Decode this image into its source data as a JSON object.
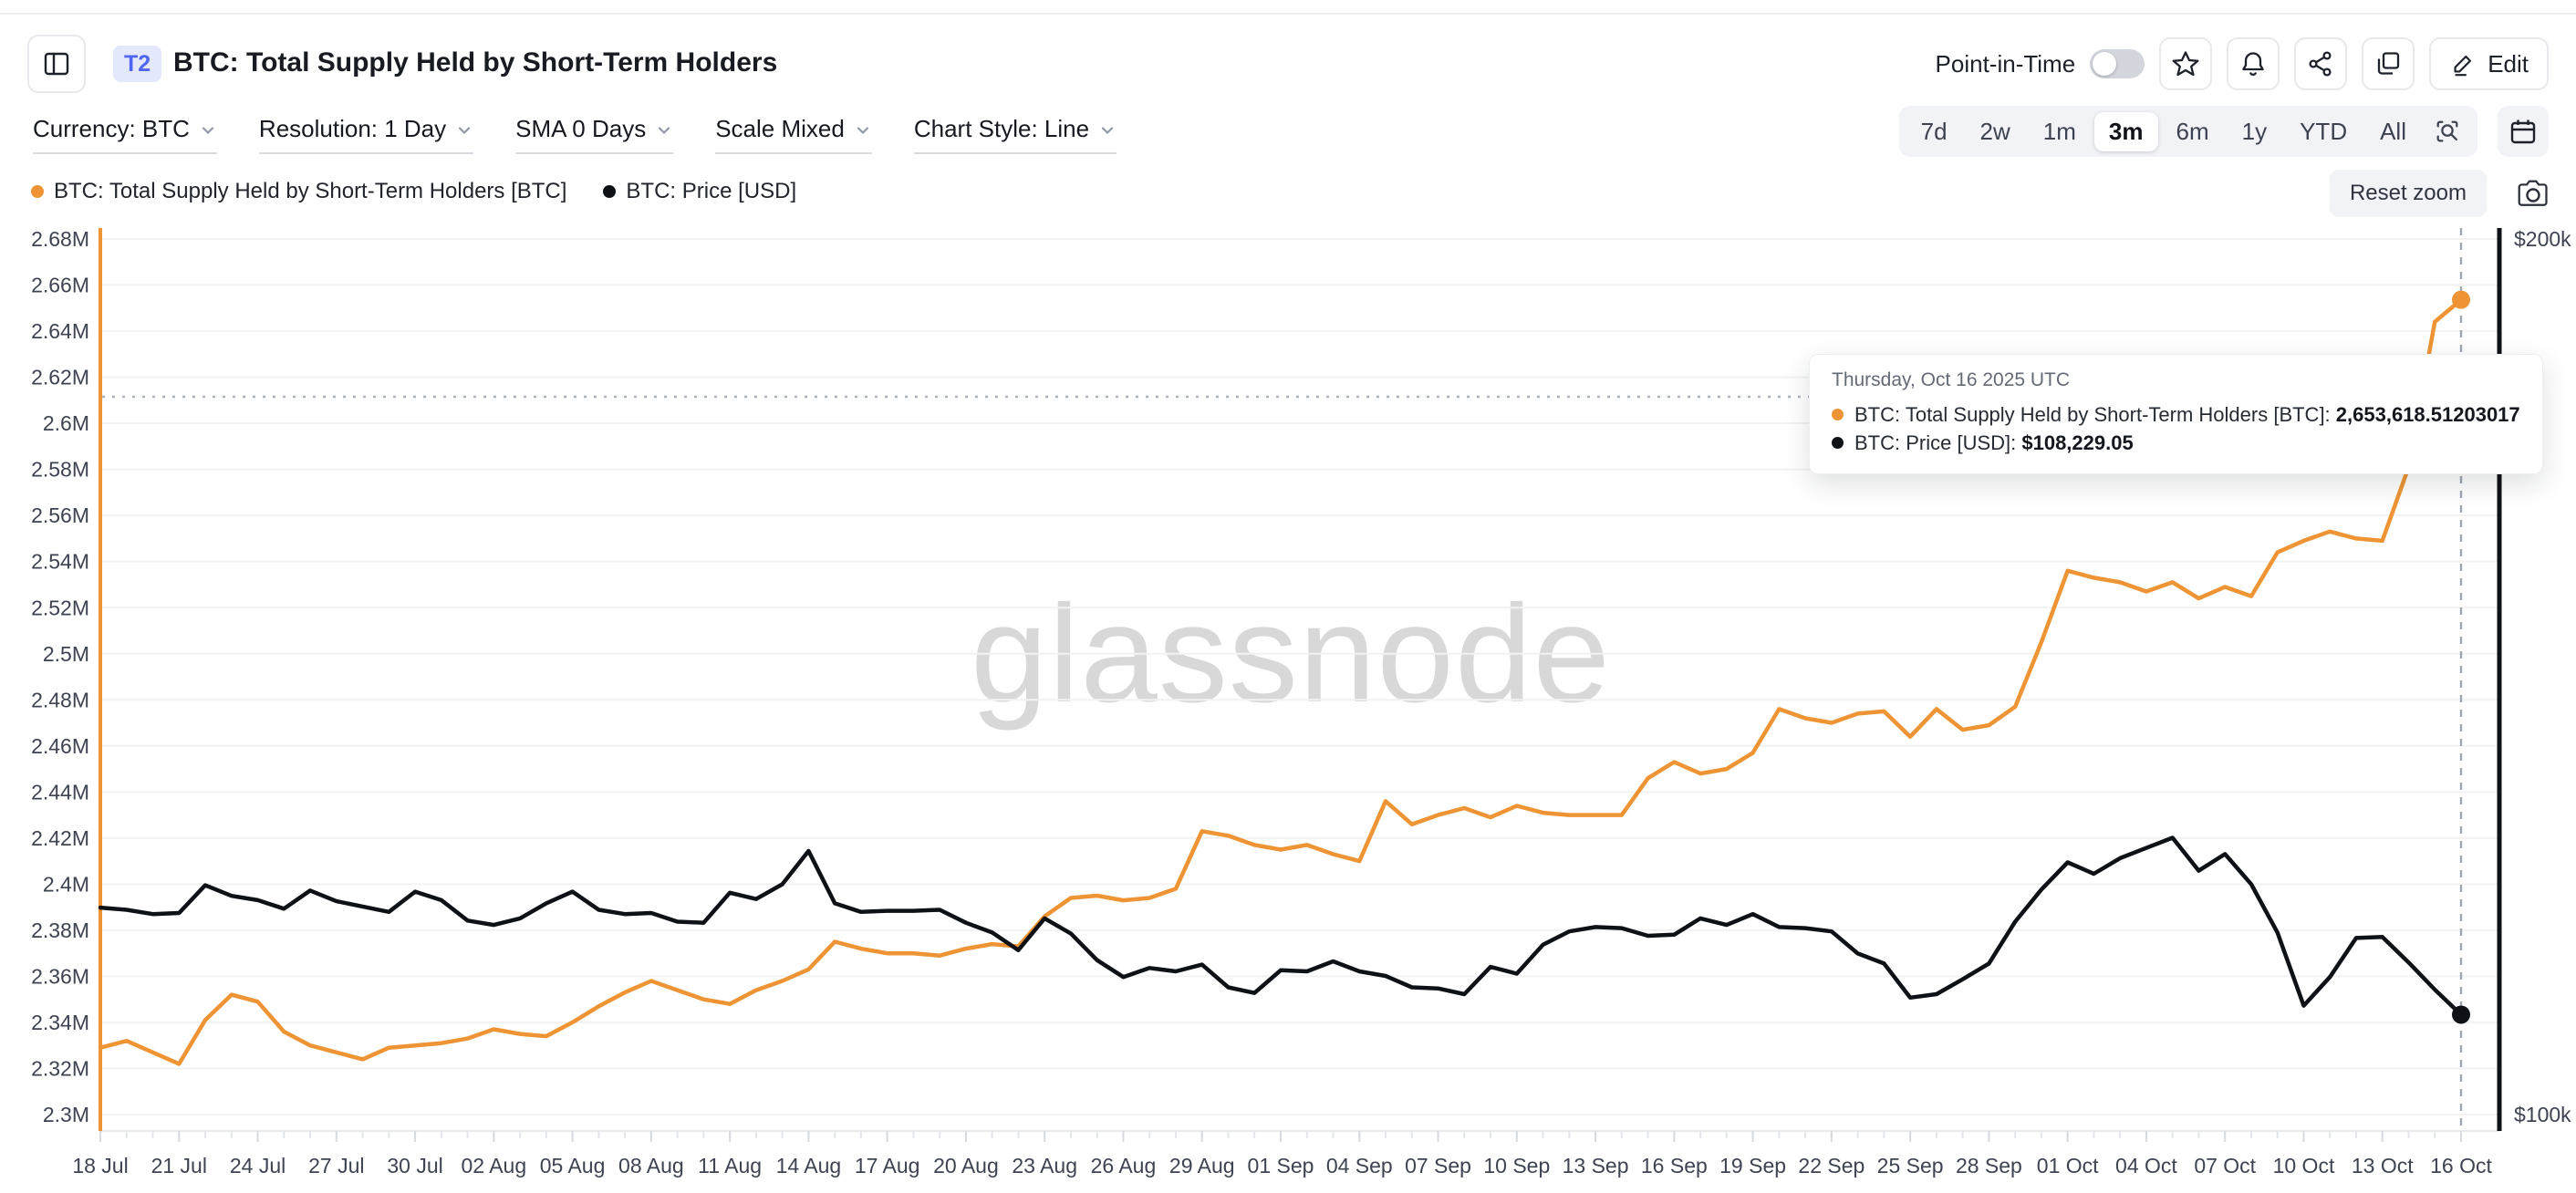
{
  "header": {
    "badge": "T2",
    "title": "BTC: Total Supply Held by Short-Term Holders",
    "point_in_time_label": "Point-in-Time",
    "point_in_time_on": false,
    "edit_label": "Edit"
  },
  "toolbar": {
    "dropdowns": [
      {
        "label": "Currency: BTC"
      },
      {
        "label": "Resolution: 1 Day"
      },
      {
        "label": "SMA 0 Days"
      },
      {
        "label": "Scale Mixed"
      },
      {
        "label": "Chart Style: Line"
      }
    ]
  },
  "range_selector": {
    "options": [
      "7d",
      "2w",
      "1m",
      "3m",
      "6m",
      "1y",
      "YTD",
      "All"
    ],
    "active": "3m"
  },
  "legend": {
    "items": [
      {
        "label": "BTC: Total Supply Held by Short-Term Holders [BTC]",
        "color": "#ee9434"
      },
      {
        "label": "BTC: Price [USD]",
        "color": "#0e1116"
      }
    ]
  },
  "chart_controls": {
    "reset_zoom_label": "Reset zoom"
  },
  "watermark": "glassnode",
  "tooltip": {
    "date": "Thursday, Oct 16 2025 UTC",
    "rows": [
      {
        "label": "BTC: Total Supply Held by Short-Term Holders [BTC]:",
        "value": "2,653,618.51203017",
        "color": "#ee9434"
      },
      {
        "label": "BTC: Price [USD]:",
        "value": "$108,229.05",
        "color": "#0e1116"
      }
    ]
  },
  "chart_data": {
    "type": "line",
    "title": "BTC: Total Supply Held by Short-Term Holders",
    "x_start_date": "2025-07-18",
    "x_end_date": "2025-10-16",
    "x_interval_days": 1,
    "x_tick_labels": [
      "18 Jul",
      "21 Jul",
      "24 Jul",
      "27 Jul",
      "30 Jul",
      "02 Aug",
      "05 Aug",
      "08 Aug",
      "11 Aug",
      "14 Aug",
      "17 Aug",
      "20 Aug",
      "23 Aug",
      "26 Aug",
      "29 Aug",
      "01 Sep",
      "04 Sep",
      "07 Sep",
      "10 Sep",
      "13 Sep",
      "16 Sep",
      "19 Sep",
      "22 Sep",
      "25 Sep",
      "28 Sep",
      "01 Oct",
      "04 Oct",
      "07 Oct",
      "10 Oct",
      "13 Oct",
      "16 Oct"
    ],
    "y_left_axis": {
      "ticks": [
        "2.68M",
        "2.66M",
        "2.64M",
        "2.62M",
        "2.6M",
        "2.58M",
        "2.56M",
        "2.54M",
        "2.52M",
        "2.5M",
        "2.48M",
        "2.46M",
        "2.44M",
        "2.42M",
        "2.4M",
        "2.38M",
        "2.36M",
        "2.34M",
        "2.32M",
        "2.3M"
      ],
      "min": 2300000,
      "max": 2680000,
      "scale": "linear",
      "color": "#ee9434"
    },
    "y_right_axis": {
      "ticks": [
        "$200k",
        "$100k"
      ],
      "min": 100000,
      "max": 200000,
      "scale": "log",
      "color": "#0e1116"
    },
    "grid": true,
    "legend_position": "top-left",
    "series": [
      {
        "name": "BTC: Total Supply Held by Short-Term Holders [BTC]",
        "color": "#ee9434",
        "axis": "left",
        "values": [
          2329000,
          2332000,
          2327000,
          2322000,
          2341000,
          2352000,
          2349000,
          2336000,
          2330000,
          2327000,
          2324000,
          2329000,
          2330000,
          2331000,
          2333000,
          2337000,
          2335000,
          2334000,
          2340000,
          2347000,
          2353000,
          2358000,
          2354000,
          2350000,
          2348000,
          2354000,
          2358000,
          2363000,
          2375000,
          2372000,
          2370000,
          2370000,
          2369000,
          2372000,
          2374000,
          2373000,
          2386000,
          2394000,
          2395000,
          2393000,
          2394000,
          2398000,
          2423000,
          2421000,
          2417000,
          2415000,
          2417000,
          2413000,
          2410000,
          2436000,
          2426000,
          2430000,
          2433000,
          2429000,
          2434000,
          2431000,
          2430000,
          2430000,
          2430000,
          2446000,
          2453000,
          2448000,
          2450000,
          2457000,
          2476000,
          2472000,
          2470000,
          2474000,
          2475000,
          2464000,
          2476000,
          2467000,
          2469000,
          2477000,
          2505000,
          2536000,
          2533000,
          2531000,
          2527000,
          2531000,
          2524000,
          2529000,
          2525000,
          2544000,
          2549000,
          2553000,
          2550000,
          2549000,
          2581000,
          2644000,
          2653618.51203017
        ]
      },
      {
        "name": "BTC: Price [USD]",
        "color": "#0e1116",
        "axis": "right",
        "values": [
          117800,
          117600,
          117200,
          117300,
          119900,
          118900,
          118500,
          117700,
          119400,
          118400,
          117900,
          117400,
          119300,
          118500,
          116600,
          116200,
          116800,
          118200,
          119300,
          117600,
          117200,
          117300,
          116500,
          116400,
          119200,
          118600,
          120000,
          123200,
          118200,
          117400,
          117500,
          117500,
          117600,
          116400,
          115500,
          113900,
          116800,
          115400,
          113000,
          111500,
          112300,
          112000,
          112600,
          110600,
          110100,
          112100,
          112000,
          112900,
          112000,
          111600,
          110600,
          110500,
          110000,
          112400,
          111800,
          114400,
          115600,
          116000,
          115900,
          115200,
          115300,
          116800,
          116200,
          117200,
          116000,
          115900,
          115600,
          113600,
          112700,
          109700,
          110000,
          111300,
          112700,
          116500,
          119500,
          122100,
          121000,
          122500,
          123500,
          124500,
          121300,
          122900,
          120000,
          115500,
          109000,
          111500,
          115000,
          115100,
          112800,
          110400,
          108229.05
        ]
      }
    ]
  }
}
